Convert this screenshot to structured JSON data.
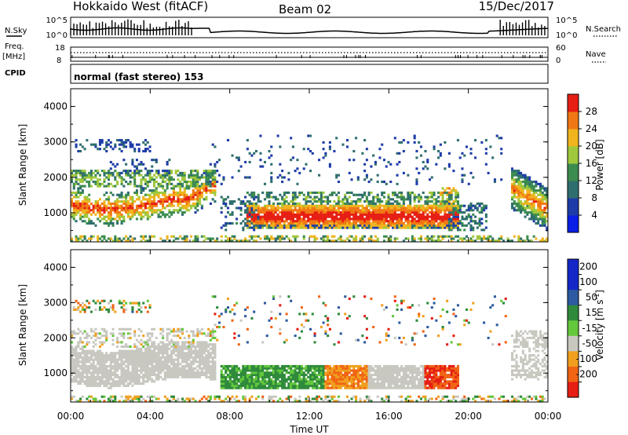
{
  "header": {
    "radar": "Hokkaido West (fitACF)",
    "beam": "Beam 02",
    "date": "15/Dec/2017"
  },
  "noise_panel": {
    "left_label": "N.Sky",
    "right_label": "N.Search",
    "left_ticks": [
      "10^5",
      "10^0"
    ],
    "right_ticks": [
      "10^5",
      "10^0"
    ]
  },
  "freq_panel": {
    "left_label_top": "Freq.",
    "left_label_unit": "[MHz]",
    "left_ticks": [
      "18",
      "8"
    ],
    "right_label": "Nave",
    "right_ticks": [
      "60",
      "0"
    ]
  },
  "cpid": {
    "label": "CPID",
    "value": "normal (fast stereo) 153"
  },
  "chart_data": [
    {
      "type": "heatmap",
      "name": "power",
      "ylabel": "Slant Range [km]",
      "ylim": [
        180,
        4500
      ],
      "yticks": [
        "1000",
        "2000",
        "3000",
        "4000"
      ],
      "xlim_hours": [
        0,
        24
      ],
      "colorbar": {
        "label": "Power [dB]",
        "range": [
          0,
          32
        ],
        "ticks": [
          "4",
          "8",
          "12",
          "16",
          "20",
          "24",
          "28"
        ],
        "colors": [
          "#0a1ee6",
          "#1e3ca8",
          "#2f6e6e",
          "#3c8c50",
          "#a0c83c",
          "#f0b41e",
          "#f07814",
          "#e61e14"
        ]
      }
    },
    {
      "type": "heatmap",
      "name": "velocity",
      "ylabel": "Slant Range [km]",
      "ylim": [
        180,
        4500
      ],
      "yticks": [
        "1000",
        "2000",
        "3000",
        "4000"
      ],
      "xlim_hours": [
        0,
        24
      ],
      "colorbar": {
        "label": "Velocity [m s",
        "label_exp": "-1",
        "ticks": [
          "200",
          "100",
          "50",
          "15",
          "-15",
          "-50",
          "-100",
          "-200"
        ],
        "colors": [
          "#1428c8",
          "#2d5aa0",
          "#2f8a3c",
          "#64c83c",
          "#c8c8c0",
          "#f0a01e",
          "#f06414",
          "#e61e14"
        ]
      }
    }
  ],
  "xaxis": {
    "ticks": [
      "00:00",
      "04:00",
      "08:00",
      "12:00",
      "16:00",
      "20:00",
      "00:00"
    ],
    "label": "Time UT"
  }
}
